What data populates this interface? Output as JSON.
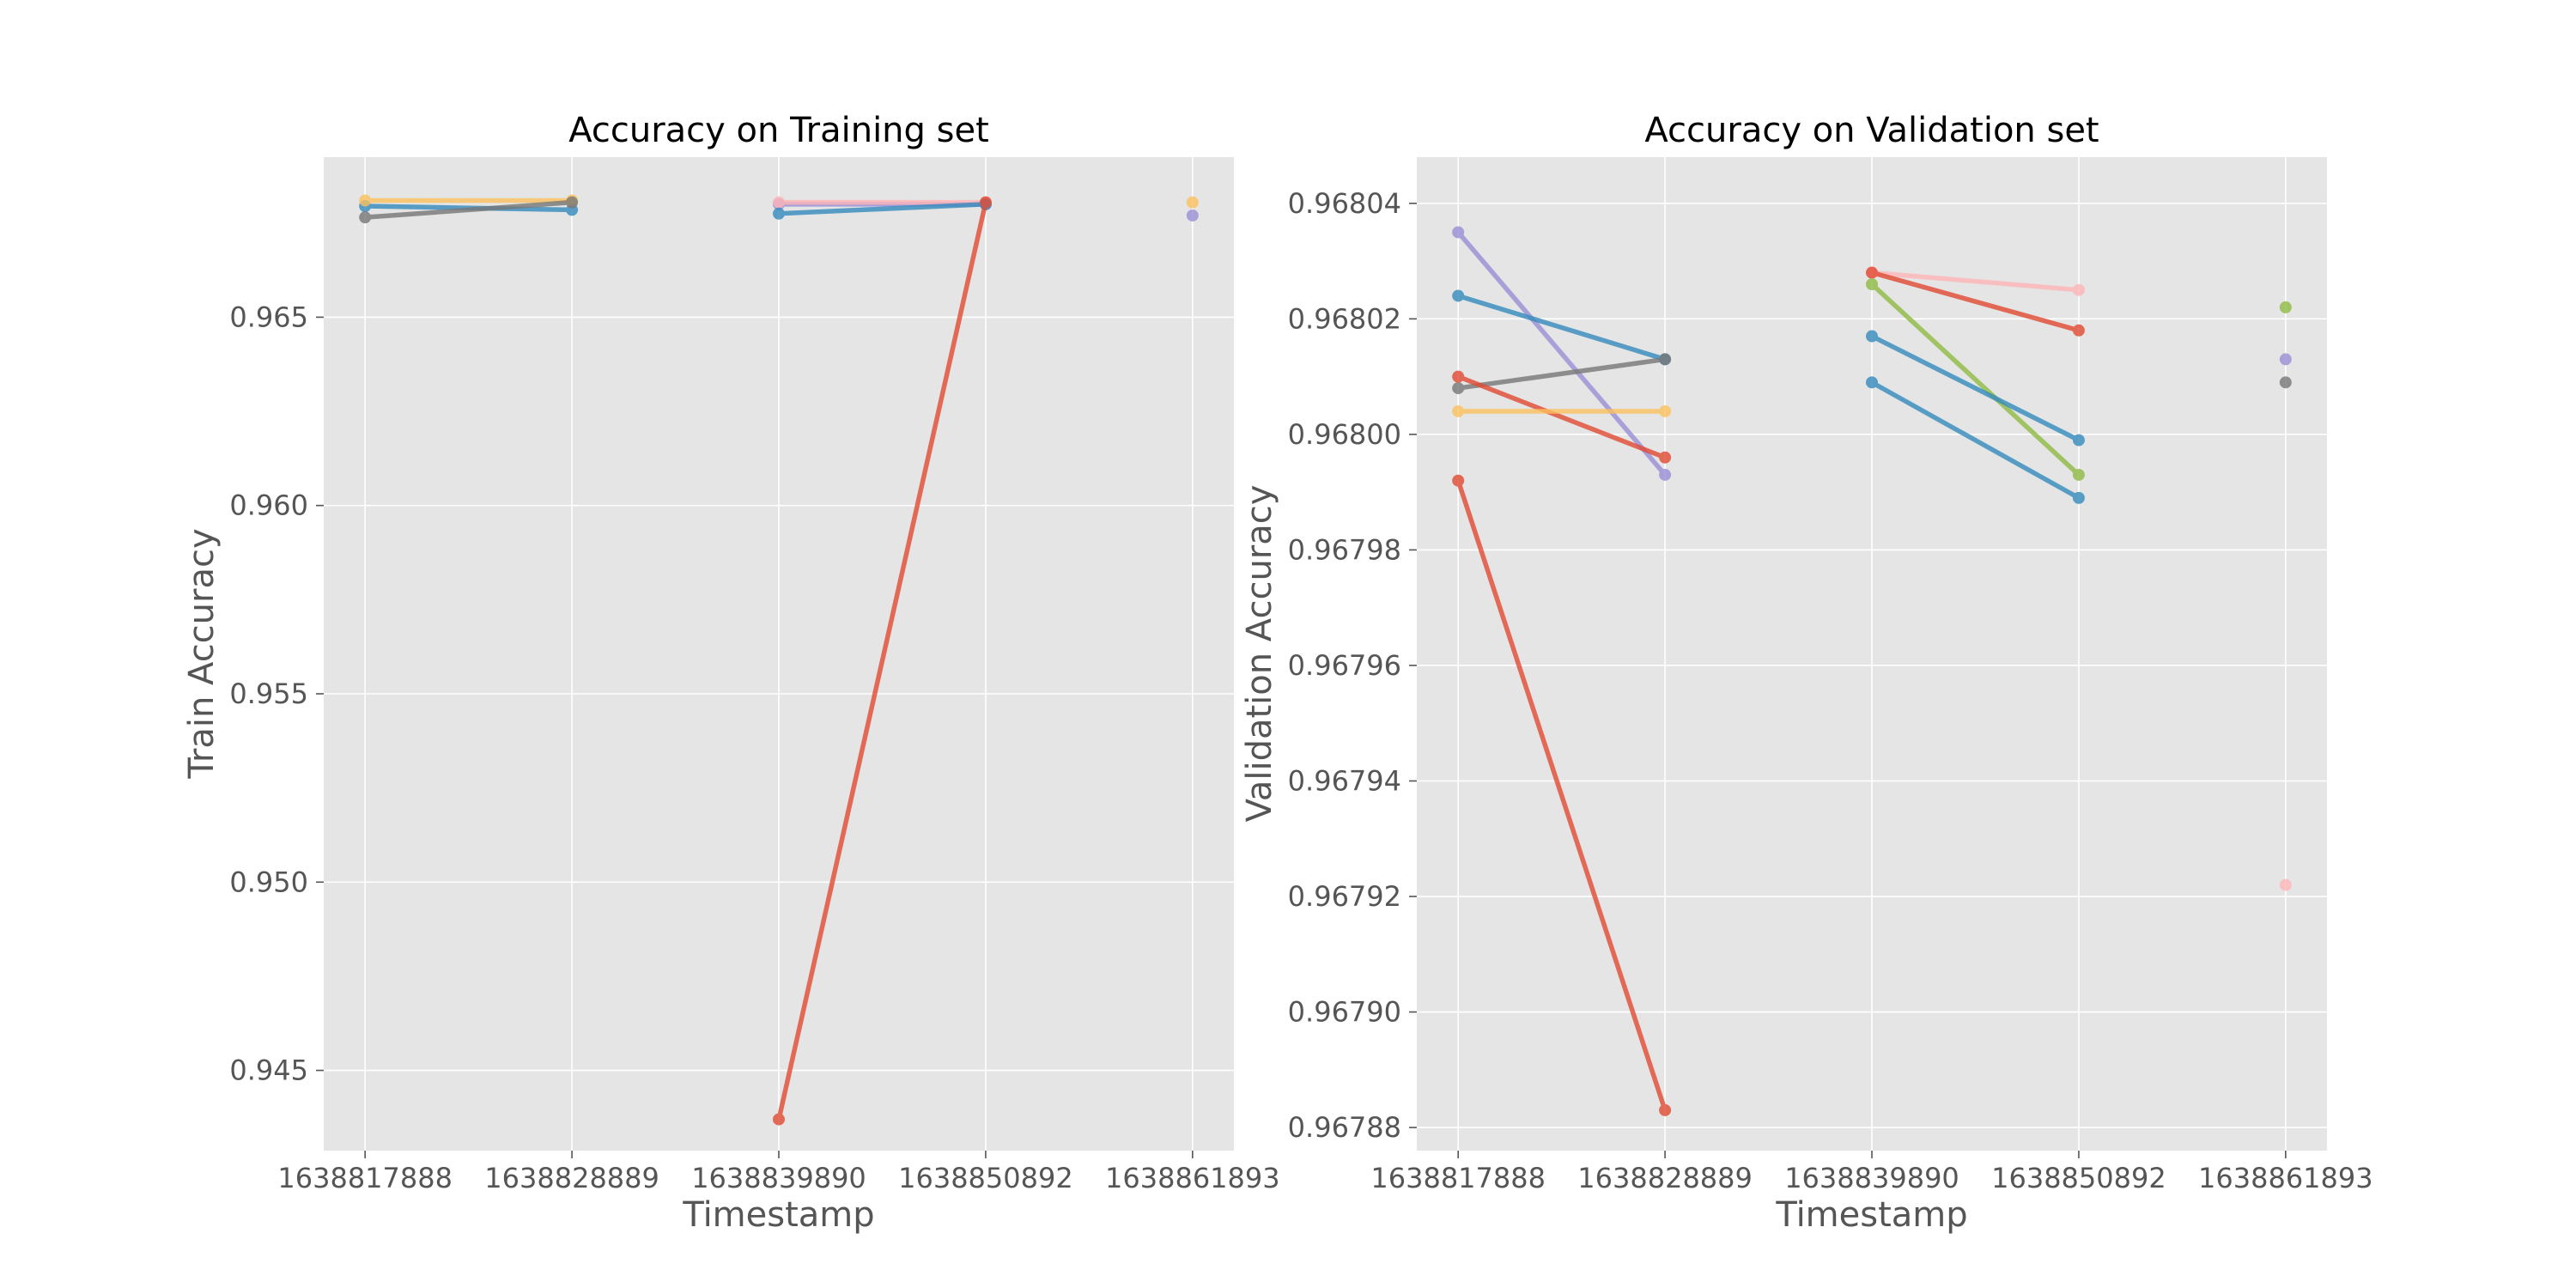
{
  "chart_data": [
    {
      "type": "line",
      "title": "Accuracy on Training set",
      "xlabel": "Timestamp",
      "ylabel": "Train Accuracy",
      "grid": true,
      "xticks": [
        1638817888,
        1638828889,
        1638839890,
        1638850892,
        1638861893
      ],
      "xtick_labels": [
        "1638817888",
        "1638828889",
        "1638839890",
        "1638850892",
        "1638861893"
      ],
      "yticks": [
        0.945,
        0.95,
        0.955,
        0.96,
        0.965
      ],
      "ytick_labels": [
        "0.945",
        "0.950",
        "0.955",
        "0.960",
        "0.965"
      ],
      "xlim": [
        1638815688,
        1638864093
      ],
      "ylim": [
        0.94287,
        0.96925
      ],
      "series": [
        {
          "color": "#348ABD",
          "alpha": 0.8,
          "x": [
            1638817888,
            1638828889
          ],
          "y": [
            0.96795,
            0.96785
          ]
        },
        {
          "color": "#FBC15E",
          "alpha": 0.8,
          "x": [
            1638817888,
            1638828889
          ],
          "y": [
            0.9681,
            0.9681
          ]
        },
        {
          "color": "#777777",
          "alpha": 0.8,
          "x": [
            1638817888,
            1638828889
          ],
          "y": [
            0.96765,
            0.96805
          ]
        },
        {
          "color": "#988ED5",
          "alpha": 0.8,
          "x": [
            1638839890,
            1638850892
          ],
          "y": [
            0.968,
            0.968
          ]
        },
        {
          "color": "#FFB5B8",
          "alpha": 0.8,
          "x": [
            1638839890,
            1638850892
          ],
          "y": [
            0.96805,
            0.96805
          ]
        },
        {
          "color": "#348ABD",
          "alpha": 0.8,
          "x": [
            1638839890,
            1638850892
          ],
          "y": [
            0.96775,
            0.968
          ]
        },
        {
          "color": "#E24A33",
          "alpha": 0.8,
          "x": [
            1638839890,
            1638850892
          ],
          "y": [
            0.9437,
            0.96805
          ]
        },
        {
          "color": "#FBC15E",
          "alpha": 0.8,
          "x": [
            1638861893
          ],
          "y": [
            0.96805
          ]
        },
        {
          "color": "#988ED5",
          "alpha": 0.8,
          "x": [
            1638861893
          ],
          "y": [
            0.9677
          ]
        }
      ]
    },
    {
      "type": "line",
      "title": "Accuracy on Validation set",
      "xlabel": "Timestamp",
      "ylabel": "Validation Accuracy",
      "grid": true,
      "xticks": [
        1638817888,
        1638828889,
        1638839890,
        1638850892,
        1638861893
      ],
      "xtick_labels": [
        "1638817888",
        "1638828889",
        "1638839890",
        "1638850892",
        "1638861893"
      ],
      "yticks": [
        0.96788,
        0.9679,
        0.96792,
        0.96794,
        0.96796,
        0.96798,
        0.968,
        0.96802,
        0.96804
      ],
      "ytick_labels": [
        "0.96788",
        "0.96790",
        "0.96792",
        "0.96794",
        "0.96796",
        "0.96798",
        "0.96800",
        "0.96802",
        "0.96804"
      ],
      "xlim": [
        1638815688,
        1638864093
      ],
      "ylim": [
        0.967876,
        0.968048
      ],
      "series": [
        {
          "color": "#988ED5",
          "alpha": 0.8,
          "x": [
            1638817888,
            1638828889
          ],
          "y": [
            0.968035,
            0.967993
          ]
        },
        {
          "color": "#348ABD",
          "alpha": 0.8,
          "x": [
            1638817888,
            1638828889
          ],
          "y": [
            0.968024,
            0.968013
          ]
        },
        {
          "color": "#777777",
          "alpha": 0.8,
          "x": [
            1638817888,
            1638828889
          ],
          "y": [
            0.968008,
            0.968013
          ]
        },
        {
          "color": "#E24A33",
          "alpha": 0.8,
          "x": [
            1638817888,
            1638828889
          ],
          "y": [
            0.96801,
            0.967996
          ]
        },
        {
          "color": "#FBC15E",
          "alpha": 0.8,
          "x": [
            1638817888,
            1638828889
          ],
          "y": [
            0.968004,
            0.968004
          ]
        },
        {
          "color": "#E24A33",
          "alpha": 0.8,
          "x": [
            1638817888,
            1638828889
          ],
          "y": [
            0.967992,
            0.967883
          ]
        },
        {
          "color": "#FFB5B8",
          "alpha": 0.8,
          "x": [
            1638839890,
            1638850892
          ],
          "y": [
            0.968028,
            0.968025
          ]
        },
        {
          "color": "#E24A33",
          "alpha": 0.8,
          "x": [
            1638839890,
            1638850892
          ],
          "y": [
            0.968028,
            0.968018
          ]
        },
        {
          "color": "#8EBA42",
          "alpha": 0.8,
          "x": [
            1638839890,
            1638850892
          ],
          "y": [
            0.968026,
            0.967993
          ]
        },
        {
          "color": "#348ABD",
          "alpha": 0.8,
          "x": [
            1638839890,
            1638850892
          ],
          "y": [
            0.968017,
            0.967999
          ]
        },
        {
          "color": "#348ABD",
          "alpha": 0.8,
          "x": [
            1638839890,
            1638850892
          ],
          "y": [
            0.968009,
            0.967989
          ]
        },
        {
          "color": "#8EBA42",
          "alpha": 0.8,
          "x": [
            1638861893
          ],
          "y": [
            0.968022
          ]
        },
        {
          "color": "#988ED5",
          "alpha": 0.8,
          "x": [
            1638861893
          ],
          "y": [
            0.968013
          ]
        },
        {
          "color": "#777777",
          "alpha": 0.8,
          "x": [
            1638861893
          ],
          "y": [
            0.968009
          ]
        },
        {
          "color": "#FFB5B8",
          "alpha": 0.8,
          "x": [
            1638861893
          ],
          "y": [
            0.967922
          ]
        }
      ]
    }
  ]
}
